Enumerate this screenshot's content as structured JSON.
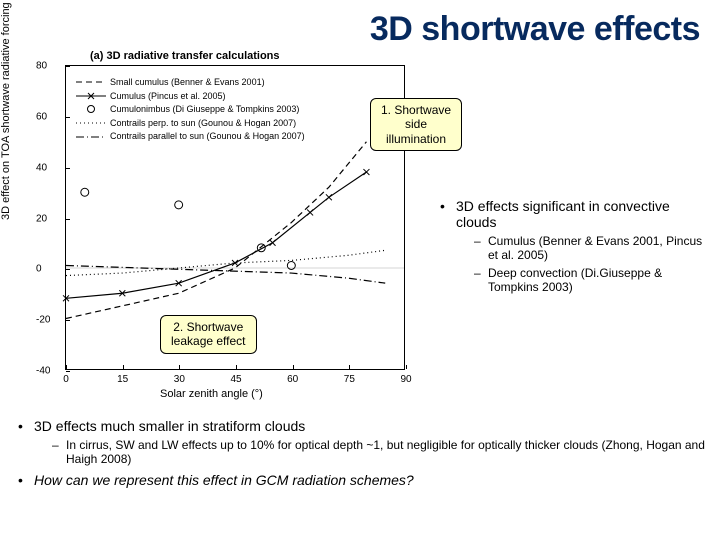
{
  "title": "3D shortwave effects",
  "chart": {
    "panel_title": "(a) 3D radiative transfer calculations",
    "ylabel": "3D effect on TOA shortwave radiative forcing (%)",
    "xlabel": "Solar zenith angle (°)",
    "xlim": [
      0,
      90
    ],
    "ylim": [
      -40,
      80
    ],
    "xticks": [
      0,
      15,
      30,
      45,
      60,
      75,
      90
    ],
    "yticks": [
      -40,
      -20,
      0,
      20,
      40,
      60,
      80
    ],
    "legend": [
      {
        "label": "Small cumulus (Benner & Evans 2001)",
        "style": "dashed",
        "marker": ""
      },
      {
        "label": "Cumulus (Pincus et al. 2005)",
        "style": "solid",
        "marker": "x"
      },
      {
        "label": "Cumulonimbus (Di Giuseppe & Tompkins 2003)",
        "style": "none",
        "marker": "o"
      },
      {
        "label": "Contrails perp. to sun (Gounou & Hogan 2007)",
        "style": "dotted",
        "marker": ""
      },
      {
        "label": "Contrails parallel to sun (Gounou & Hogan 2007)",
        "style": "dashdot",
        "marker": ""
      }
    ],
    "series": {
      "small_cumulus": {
        "style": "dashed",
        "pts": [
          [
            0,
            -20
          ],
          [
            15,
            -15
          ],
          [
            30,
            -10
          ],
          [
            45,
            0
          ],
          [
            60,
            18
          ],
          [
            70,
            32
          ],
          [
            80,
            50
          ]
        ]
      },
      "cumulus": {
        "style": "solid",
        "marker": "x",
        "pts": [
          [
            0,
            -12
          ],
          [
            15,
            -10
          ],
          [
            30,
            -6
          ],
          [
            45,
            2
          ],
          [
            55,
            10
          ],
          [
            65,
            22
          ],
          [
            70,
            28
          ],
          [
            80,
            38
          ]
        ]
      },
      "cumulonimbus": {
        "style": "none",
        "marker": "o",
        "pts": [
          [
            5,
            30
          ],
          [
            30,
            25
          ],
          [
            52,
            8
          ],
          [
            60,
            1
          ]
        ]
      },
      "perp": {
        "style": "dotted",
        "pts": [
          [
            0,
            -3
          ],
          [
            15,
            -2
          ],
          [
            30,
            0
          ],
          [
            45,
            2
          ],
          [
            60,
            3
          ],
          [
            75,
            5
          ],
          [
            85,
            7
          ]
        ]
      },
      "parallel": {
        "style": "dashdot",
        "pts": [
          [
            0,
            1
          ],
          [
            20,
            0
          ],
          [
            40,
            -1
          ],
          [
            60,
            -2
          ],
          [
            75,
            -4
          ],
          [
            85,
            -6
          ]
        ]
      }
    },
    "zero_line_y": 0,
    "colors": {
      "line": "#000000",
      "bg": "#ffffff"
    }
  },
  "callout1": {
    "text1": "1. Shortwave",
    "text2": "side",
    "text3": "illumination"
  },
  "callout2": {
    "text1": "2. Shortwave",
    "text2": "leakage effect"
  },
  "right_bullets": {
    "main": "3D effects significant in convective clouds",
    "subs": [
      "Cumulus (Benner & Evans 2001, Pincus et al. 2005)",
      "Deep convection (Di.Giuseppe & Tompkins 2003)"
    ]
  },
  "bottom_bullets": [
    {
      "main": "3D effects much smaller in stratiform clouds",
      "subs": [
        "In cirrus, SW and LW effects up to 10% for optical depth ~1, but negligible for optically thicker clouds (Zhong, Hogan and Haigh 2008)"
      ]
    },
    {
      "main": "How can we represent this effect in GCM radiation schemes?",
      "italic": true,
      "subs": []
    }
  ]
}
